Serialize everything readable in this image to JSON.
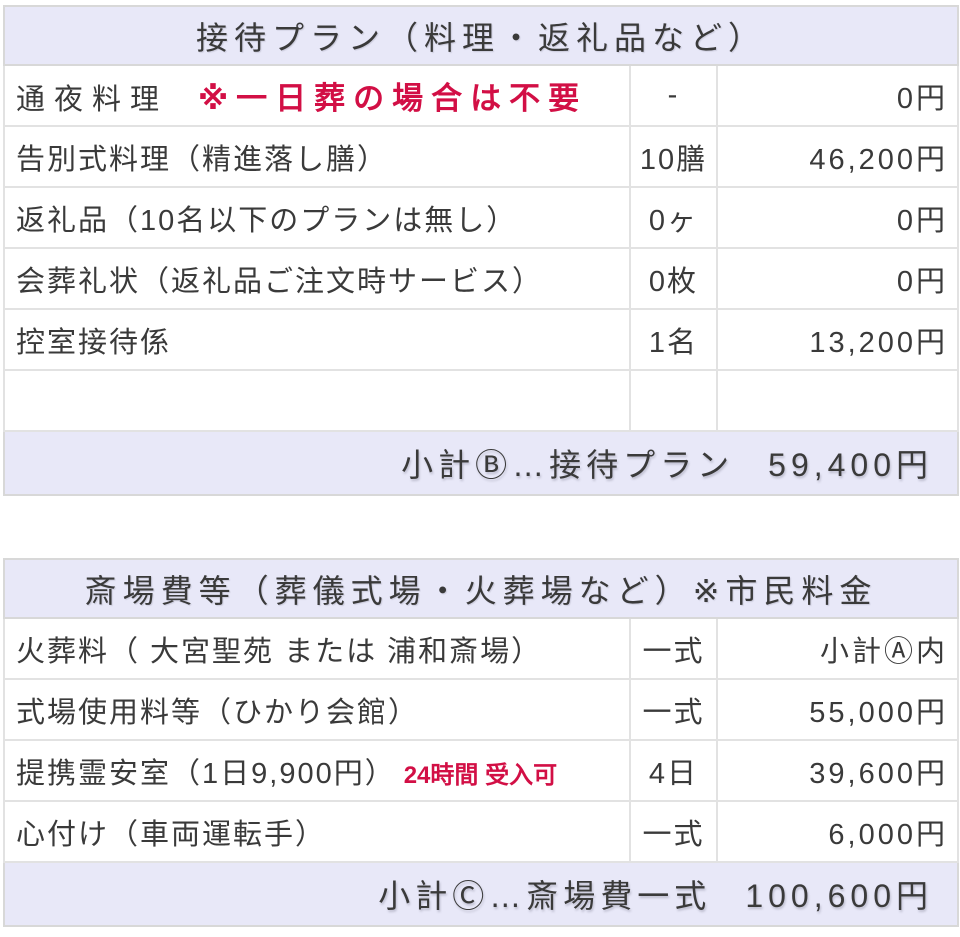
{
  "colors": {
    "header_bg": "#e8e8f8",
    "accent_red": "#d20f45",
    "text": "#3a3a3a",
    "border": "#e2e2e2"
  },
  "hospitality_table": {
    "title": "接待プラン（料理・返礼品など）",
    "rows": [
      {
        "item": "通夜料理",
        "note": "※一日葬の場合は不要",
        "qty": "-",
        "price": "0円"
      },
      {
        "item": "告別式料理（精進落し膳）",
        "note": "",
        "qty": "10膳",
        "price": "46,200円"
      },
      {
        "item": "返礼品（10名以下のプランは無し）",
        "note": "",
        "qty": "0ヶ",
        "price": "0円"
      },
      {
        "item": "会葬礼状（返礼品ご注文時サービス）",
        "note": "",
        "qty": "0枚",
        "price": "0円"
      },
      {
        "item": "控室接待係",
        "note": "",
        "qty": "1名",
        "price": "13,200円"
      },
      {
        "item": "",
        "note": "",
        "qty": "",
        "price": ""
      }
    ],
    "subtotal_label": "小計Ⓑ…接待プラン",
    "subtotal_amount": "59,400円"
  },
  "venue_table": {
    "title": "斎場費等（葬儀式場・火葬場など）※市民料金",
    "rows": [
      {
        "item": "火葬料（ 大宮聖苑 または 浦和斎場）",
        "note": "",
        "qty": "一式",
        "price": "小計Ⓐ内"
      },
      {
        "item": "式場使用料等（ひかり会館）",
        "note": "",
        "qty": "一式",
        "price": "55,000円"
      },
      {
        "item": "提携霊安室（1日9,900円）",
        "note": "24時間 受入可",
        "qty": "4日",
        "price": "39,600円"
      },
      {
        "item": "心付け（車両運転手）",
        "note": "",
        "qty": "一式",
        "price": "6,000円"
      }
    ],
    "subtotal_label": "小計Ⓒ…斎場費一式",
    "subtotal_amount": "100,600円"
  }
}
